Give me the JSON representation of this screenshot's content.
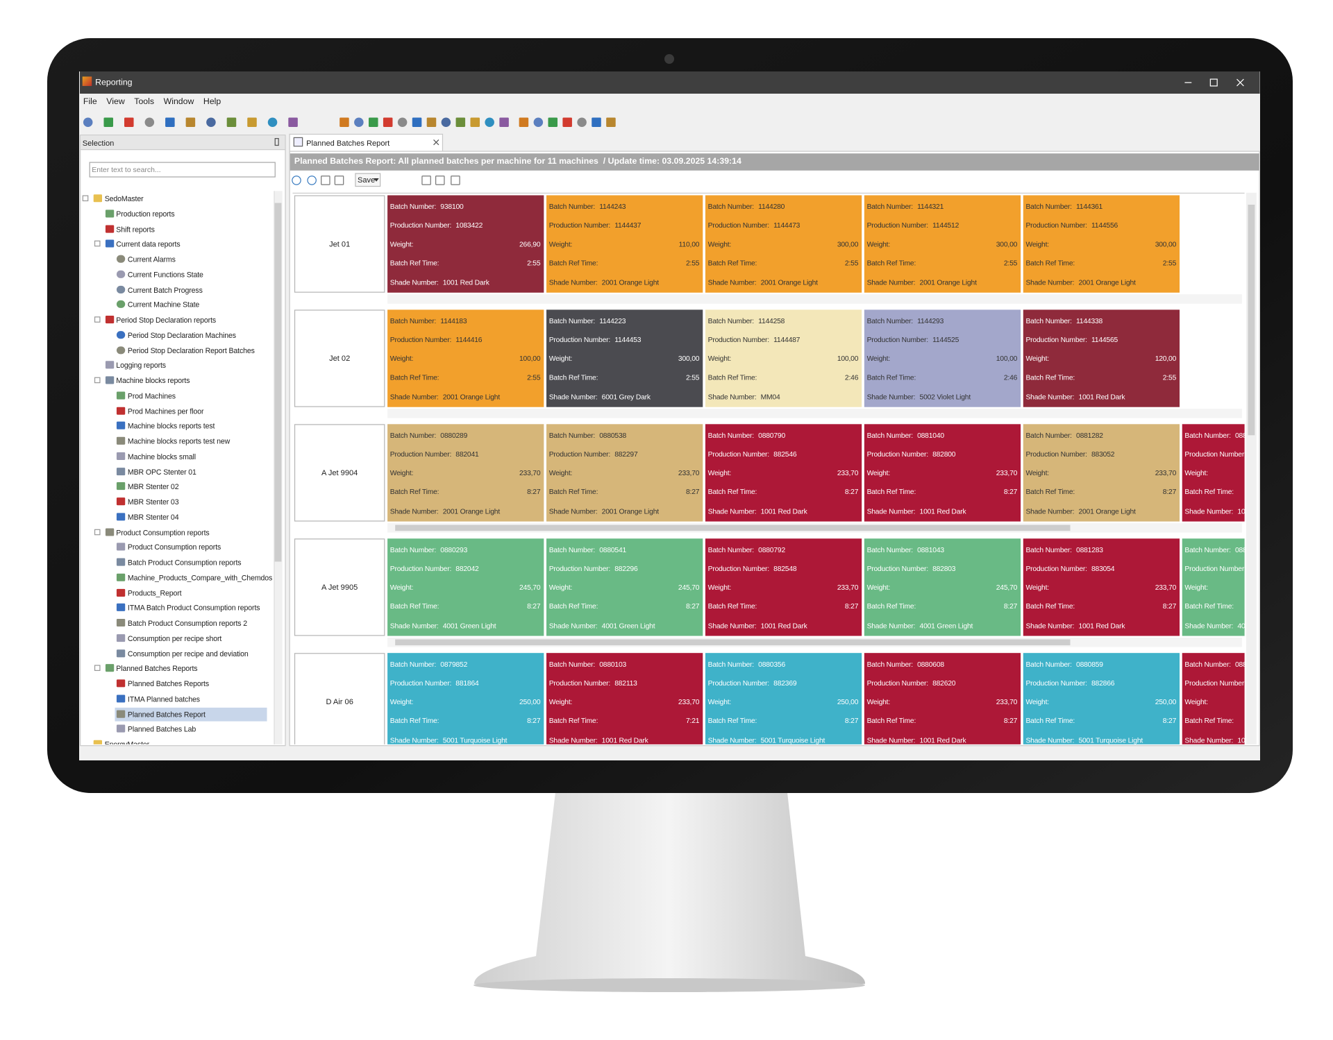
{
  "window": {
    "title": "Reporting",
    "menu": [
      "File",
      "View",
      "Tools",
      "Window",
      "Help"
    ]
  },
  "sidebar": {
    "title": "Selection",
    "search_placeholder": "Enter text to search...",
    "tree": [
      {
        "label": "SedoMaster",
        "children": [
          {
            "label": "Production reports"
          },
          {
            "label": "Shift reports"
          },
          {
            "label": "Current data reports",
            "children": [
              {
                "label": "Current Alarms"
              },
              {
                "label": "Current Functions State"
              },
              {
                "label": "Current Batch Progress"
              },
              {
                "label": "Current Machine State"
              }
            ]
          },
          {
            "label": "Period Stop Declaration reports",
            "children": [
              {
                "label": "Period Stop Declaration Machines"
              },
              {
                "label": "Period Stop Declaration Report Batches"
              }
            ]
          },
          {
            "label": "Logging reports"
          },
          {
            "label": "Machine blocks reports",
            "children": [
              {
                "label": "Prod Machines"
              },
              {
                "label": "Prod Machines per floor"
              },
              {
                "label": "Machine blocks reports test"
              },
              {
                "label": "Machine blocks reports test new"
              },
              {
                "label": "Machine blocks small"
              },
              {
                "label": "MBR OPC Stenter 01"
              },
              {
                "label": "MBR Stenter 02"
              },
              {
                "label": "MBR Stenter 03"
              },
              {
                "label": "MBR Stenter 04"
              }
            ]
          },
          {
            "label": "Product Consumption reports",
            "children": [
              {
                "label": "Product Consumption reports"
              },
              {
                "label": "Batch Product Consumption reports"
              },
              {
                "label": "Machine_Products_Compare_with_Chemdos"
              },
              {
                "label": "Products_Report"
              },
              {
                "label": "ITMA Batch Product Consumption reports"
              },
              {
                "label": "Batch Product Consumption reports 2"
              },
              {
                "label": "Consumption per recipe short"
              },
              {
                "label": "Consumption per recipe and deviation"
              }
            ]
          },
          {
            "label": "Planned Batches Reports",
            "children": [
              {
                "label": "Planned Batches Reports"
              },
              {
                "label": "ITMA Planned batches"
              },
              {
                "label": "Planned Batches Report",
                "selected": true
              },
              {
                "label": "Planned Batches Lab"
              }
            ]
          }
        ]
      },
      {
        "label": "EnergyMaster"
      }
    ]
  },
  "report": {
    "tab": "Planned Batches Report",
    "header": "Planned Batches Report: All planned batches per machine for 11 machines  / Update time: 03.09.2025 14:39:14",
    "save": "Save",
    "field_labels": {
      "batch": "Batch Number:",
      "production": "Production Number:",
      "weight": "Weight:",
      "ref_time": "Batch Ref Time:",
      "shade": "Shade Number:"
    },
    "machines": [
      {
        "name": "Jet 01",
        "batches": [
          {
            "batch": "938100",
            "production": "1083422",
            "weight": "266,90",
            "ref_time": "2:55",
            "shade": "1001 Red Dark",
            "color": "#8f2a3b"
          },
          {
            "batch": "1144243",
            "production": "1144437",
            "weight": "110,00",
            "ref_time": "2:55",
            "shade": "2001 Orange Light",
            "color": "#f2a02c"
          },
          {
            "batch": "1144280",
            "production": "1144473",
            "weight": "300,00",
            "ref_time": "2:55",
            "shade": "2001 Orange Light",
            "color": "#f2a02c"
          },
          {
            "batch": "1144321",
            "production": "1144512",
            "weight": "300,00",
            "ref_time": "2:55",
            "shade": "2001 Orange Light",
            "color": "#f2a02c"
          },
          {
            "batch": "1144361",
            "production": "1144556",
            "weight": "300,00",
            "ref_time": "2:55",
            "shade": "2001 Orange Light",
            "color": "#f2a02c"
          }
        ]
      },
      {
        "name": "Jet 02",
        "batches": [
          {
            "batch": "1144183",
            "production": "1144416",
            "weight": "100,00",
            "ref_time": "2:55",
            "shade": "2001 Orange Light",
            "color": "#f2a02c"
          },
          {
            "batch": "1144223",
            "production": "1144453",
            "weight": "300,00",
            "ref_time": "2:55",
            "shade": "6001 Grey Dark",
            "color": "#4b4b50"
          },
          {
            "batch": "1144258",
            "production": "1144487",
            "weight": "100,00",
            "ref_time": "2:46",
            "shade": "MM04",
            "color": "#f3e7b9"
          },
          {
            "batch": "1144293",
            "production": "1144525",
            "weight": "100,00",
            "ref_time": "2:46",
            "shade": "5002 Violet Light",
            "color": "#a3a7cb"
          },
          {
            "batch": "1144338",
            "production": "1144565",
            "weight": "120,00",
            "ref_time": "2:55",
            "shade": "1001 Red Dark",
            "color": "#8f2a3b"
          }
        ]
      },
      {
        "name": "A Jet 9904",
        "batches": [
          {
            "batch": "0880289",
            "production": "882041",
            "weight": "233,70",
            "ref_time": "8:27",
            "shade": "2001 Orange Light",
            "color": "#d6b679"
          },
          {
            "batch": "0880538",
            "production": "882297",
            "weight": "233,70",
            "ref_time": "8:27",
            "shade": "2001 Orange Light",
            "color": "#d6b679"
          },
          {
            "batch": "0880790",
            "production": "882546",
            "weight": "233,70",
            "ref_time": "8:27",
            "shade": "1001 Red Dark",
            "color": "#ad1837"
          },
          {
            "batch": "0881040",
            "production": "882800",
            "weight": "233,70",
            "ref_time": "8:27",
            "shade": "1001 Red Dark",
            "color": "#ad1837"
          },
          {
            "batch": "0881282",
            "production": "883052",
            "weight": "233,70",
            "ref_time": "8:27",
            "shade": "2001 Orange Light",
            "color": "#d6b679"
          },
          {
            "batch": "088",
            "shade": "10",
            "color": "#ad1837"
          }
        ]
      },
      {
        "name": "A Jet 9905",
        "batches": [
          {
            "batch": "0880293",
            "production": "882042",
            "weight": "245,70",
            "ref_time": "8:27",
            "shade": "4001 Green Light",
            "color": "#69ba85"
          },
          {
            "batch": "0880541",
            "production": "882296",
            "weight": "245,70",
            "ref_time": "8:27",
            "shade": "4001 Green Light",
            "color": "#69ba85"
          },
          {
            "batch": "0880792",
            "production": "882548",
            "weight": "233,70",
            "ref_time": "8:27",
            "shade": "1001 Red Dark",
            "color": "#ad1837"
          },
          {
            "batch": "0881043",
            "production": "882803",
            "weight": "245,70",
            "ref_time": "8:27",
            "shade": "4001 Green Light",
            "color": "#69ba85"
          },
          {
            "batch": "0881283",
            "production": "883054",
            "weight": "233,70",
            "ref_time": "8:27",
            "shade": "1001 Red Dark",
            "color": "#ad1837"
          },
          {
            "batch": "088",
            "shade": "40",
            "color": "#69ba85"
          }
        ]
      },
      {
        "name": "D Air 06",
        "batches": [
          {
            "batch": "0879852",
            "production": "881864",
            "weight": "250,00",
            "ref_time": "8:27",
            "shade": "5001 Turquoise Light",
            "color": "#3fb2c9"
          },
          {
            "batch": "0880103",
            "production": "882113",
            "weight": "233,70",
            "ref_time": "7:21",
            "shade": "1001 Red Dark",
            "color": "#ad1837"
          },
          {
            "batch": "0880356",
            "production": "882369",
            "weight": "250,00",
            "ref_time": "8:27",
            "shade": "5001 Turquoise Light",
            "color": "#3fb2c9"
          },
          {
            "batch": "0880608",
            "production": "882620",
            "weight": "233,70",
            "ref_time": "8:27",
            "shade": "1001 Red Dark",
            "color": "#ad1837"
          },
          {
            "batch": "0880859",
            "production": "882866",
            "weight": "250,00",
            "ref_time": "8:27",
            "shade": "5001 Turquoise Light",
            "color": "#3fb2c9"
          },
          {
            "batch": "088",
            "shade": "10",
            "color": "#ad1837"
          }
        ]
      }
    ]
  }
}
